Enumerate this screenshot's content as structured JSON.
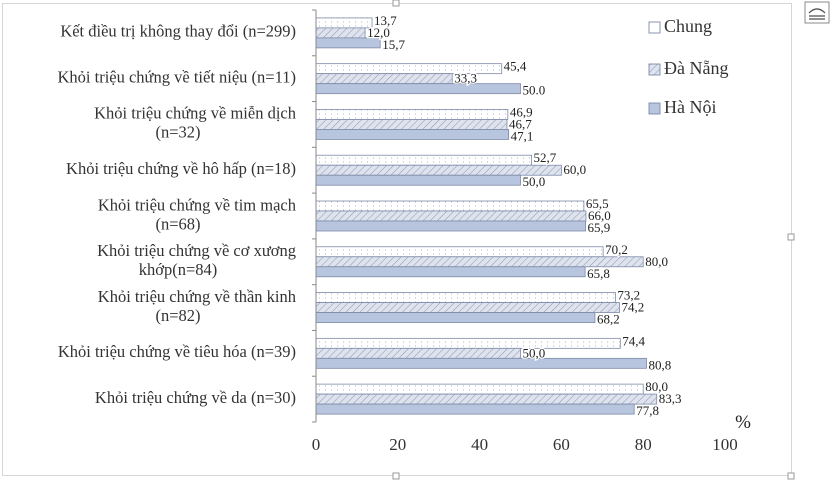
{
  "chart_data": {
    "type": "bar",
    "orientation": "horizontal",
    "categories": [
      [
        "Khỏi triệu chứng về da (n=30)"
      ],
      [
        "Khỏi triệu chứng về tiêu hóa (n=39)"
      ],
      [
        "Khỏi triệu chứng về thần kinh",
        "(n=82)"
      ],
      [
        "Khỏi triệu chứng về cơ xương",
        "khớp(n=84)"
      ],
      [
        "Khỏi triệu chứng về tim mạch",
        "(n=68)"
      ],
      [
        "Khỏi triệu chứng về hô hấp (n=18)"
      ],
      [
        "Khỏi triệu chứng về miễn dịch",
        "(n=32)"
      ],
      [
        "Khỏi triệu chứng về tiết niệu (n=11)"
      ],
      [
        "Kết điều trị không thay đổi (n=299)"
      ]
    ],
    "series": [
      {
        "name": "Chung",
        "values": [
          80.0,
          74.4,
          73.2,
          70.2,
          65.5,
          52.7,
          46.9,
          45.4,
          13.7
        ],
        "labels": [
          "80,0",
          "74,4",
          "73,2",
          "70,2",
          "65,5",
          "52,7",
          "46,9",
          "45,4",
          "13,7"
        ]
      },
      {
        "name": "Đà Nẵng",
        "values": [
          83.3,
          50.0,
          74.2,
          80.0,
          66.0,
          60.0,
          46.7,
          33.3,
          12.0
        ],
        "labels": [
          "83,3",
          "50,0",
          "74,2",
          "80,0",
          "66,0",
          "60,0",
          "46,7",
          "33,3",
          "12,0"
        ]
      },
      {
        "name": "Hà Nội",
        "values": [
          77.8,
          80.8,
          68.2,
          65.8,
          65.9,
          50.0,
          47.1,
          50.0,
          15.7
        ],
        "labels": [
          "77,8",
          "80,8",
          "68,2",
          "65,8",
          "65,9",
          "50,0",
          "47,1",
          "50.0",
          "15,7"
        ]
      }
    ],
    "xaxis": {
      "min": 0,
      "max": 100,
      "ticks": [
        "0",
        "20",
        "40",
        "60",
        "80",
        "100"
      ],
      "unit_label": "%"
    },
    "legend": {
      "position": "top-right"
    },
    "grid": false,
    "colors": {
      "chung_fill": "#ffffff",
      "danang_fill": "#dfe3ee",
      "hanoi_fill": "#b7c5df",
      "stroke": "#7d8aa8"
    }
  }
}
